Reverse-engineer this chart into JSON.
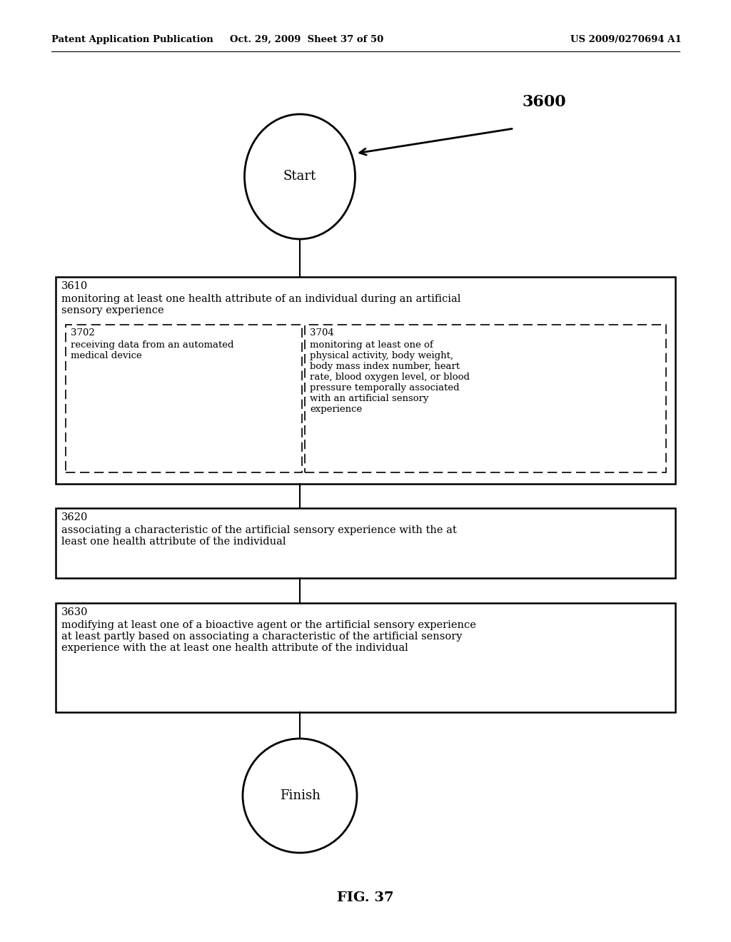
{
  "header_left": "Patent Application Publication",
  "header_center": "Oct. 29, 2009  Sheet 37 of 50",
  "header_right": "US 2009/0270694 A1",
  "fig_label": "FIG. 37",
  "diagram_number": "3600",
  "start_label": "Start",
  "finish_label": "Finish",
  "box3610_id": "3610",
  "box3610_text": "monitoring at least one health attribute of an individual during an artificial\nsensory experience",
  "box3702_id": "3702",
  "box3702_text": "receiving data from an automated\nmedical device",
  "box3704_id": "3704",
  "box3704_text": "monitoring at least one of\nphysical activity, body weight,\nbody mass index number, heart\nrate, blood oxygen level, or blood\npressure temporally associated\nwith an artificial sensory\nexperience",
  "box3620_id": "3620",
  "box3620_text": "associating a characteristic of the artificial sensory experience with the at\nleast one health attribute of the individual",
  "box3630_id": "3630",
  "box3630_text": "modifying at least one of a bioactive agent or the artificial sensory experience\nat least partly based on associating a characteristic of the artificial sensory\nexperience with the at least one health attribute of the individual",
  "bg_color": "#ffffff",
  "line_color": "#000000",
  "text_color": "#000000",
  "font_size_header": 9.5,
  "font_size_body": 10.5,
  "font_size_id": 10.5,
  "font_size_start_finish": 13,
  "font_size_diagram_num": 16,
  "font_size_fig_label": 14
}
